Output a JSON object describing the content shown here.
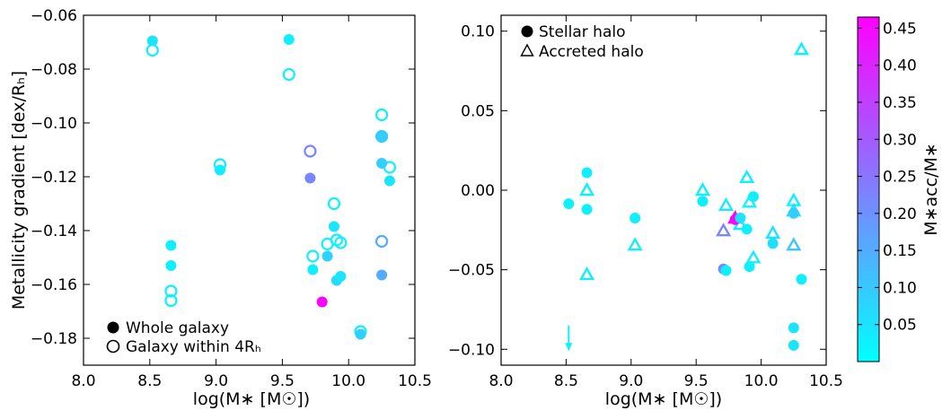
{
  "chart_data": [
    {
      "type": "scatter",
      "panel": "left",
      "xlabel": "log(M∗ [M☉])",
      "ylabel": "Metallicity gradient [dex/Rₕ]",
      "xlim": [
        8.0,
        10.5
      ],
      "ylim": [
        -0.19,
        -0.06
      ],
      "xticks": [
        "8.0",
        "8.5",
        "9.0",
        "9.5",
        "10.0",
        "10.5"
      ],
      "yticks": [
        "−0.06",
        "−0.08",
        "−0.10",
        "−0.12",
        "−0.14",
        "−0.16",
        "−0.18"
      ],
      "xtick_values": [
        8.0,
        8.5,
        9.0,
        9.5,
        10.0,
        10.5
      ],
      "ytick_values": [
        -0.06,
        -0.08,
        -0.1,
        -0.12,
        -0.14,
        -0.16,
        -0.18
      ],
      "legend_position": "bottom-left",
      "legend": [
        {
          "label": "Whole galaxy",
          "marker": "filled-circle"
        },
        {
          "label": "Galaxy within 4Rₕ",
          "marker": "open-circle"
        }
      ],
      "series": [
        {
          "name": "Whole galaxy",
          "marker": "filled-circle",
          "points": [
            {
              "x": 8.52,
              "y": -0.0695,
              "c": 0.05
            },
            {
              "x": 8.66,
              "y": -0.1455,
              "c": 0.03
            },
            {
              "x": 8.66,
              "y": -0.153,
              "c": 0.03
            },
            {
              "x": 9.03,
              "y": -0.1175,
              "c": 0.03
            },
            {
              "x": 9.55,
              "y": -0.069,
              "c": 0.03
            },
            {
              "x": 9.71,
              "y": -0.1205,
              "c": 0.22
            },
            {
              "x": 9.73,
              "y": -0.1545,
              "c": 0.03
            },
            {
              "x": 9.8,
              "y": -0.1665,
              "c": 0.46
            },
            {
              "x": 9.84,
              "y": -0.1495,
              "c": 0.08
            },
            {
              "x": 9.89,
              "y": -0.1385,
              "c": 0.05
            },
            {
              "x": 9.91,
              "y": -0.1585,
              "c": 0.06
            },
            {
              "x": 9.94,
              "y": -0.157,
              "c": 0.05
            },
            {
              "x": 10.09,
              "y": -0.1785,
              "c": 0.09
            },
            {
              "x": 10.25,
              "y": -0.105,
              "c": 0.09
            },
            {
              "x": 10.25,
              "y": -0.115,
              "c": 0.09
            },
            {
              "x": 10.25,
              "y": -0.1565,
              "c": 0.15
            },
            {
              "x": 10.31,
              "y": -0.1215,
              "c": 0.05
            }
          ]
        },
        {
          "name": "Galaxy within 4Rₕ",
          "marker": "open-circle",
          "points": [
            {
              "x": 8.52,
              "y": -0.073,
              "c": 0.03
            },
            {
              "x": 8.66,
              "y": -0.1625,
              "c": 0.03
            },
            {
              "x": 8.66,
              "y": -0.166,
              "c": 0.03
            },
            {
              "x": 9.03,
              "y": -0.1155,
              "c": 0.03
            },
            {
              "x": 9.55,
              "y": -0.082,
              "c": 0.03
            },
            {
              "x": 9.71,
              "y": -0.1105,
              "c": 0.22
            },
            {
              "x": 9.73,
              "y": -0.1495,
              "c": 0.03
            },
            {
              "x": 9.84,
              "y": -0.145,
              "c": 0.03
            },
            {
              "x": 9.89,
              "y": -0.13,
              "c": 0.03
            },
            {
              "x": 9.91,
              "y": -0.1435,
              "c": 0.03
            },
            {
              "x": 9.94,
              "y": -0.1445,
              "c": 0.03
            },
            {
              "x": 10.09,
              "y": -0.1775,
              "c": 0.03
            },
            {
              "x": 10.25,
              "y": -0.097,
              "c": 0.03
            },
            {
              "x": 10.25,
              "y": -0.105,
              "c": 0.09
            },
            {
              "x": 10.25,
              "y": -0.144,
              "c": 0.15
            },
            {
              "x": 10.31,
              "y": -0.1165,
              "c": 0.03
            }
          ]
        }
      ]
    },
    {
      "type": "scatter",
      "panel": "right",
      "xlabel": "log(M∗ [M☉])",
      "ylabel": "",
      "xlim": [
        8.0,
        10.5
      ],
      "ylim": [
        -0.11,
        0.11
      ],
      "xticks": [
        "8.0",
        "8.5",
        "9.0",
        "9.5",
        "10.0",
        "10.5"
      ],
      "yticks": [
        "0.10",
        "0.05",
        "0.00",
        "−0.05",
        "−0.10"
      ],
      "xtick_values": [
        8.0,
        8.5,
        9.0,
        9.5,
        10.0,
        10.5
      ],
      "ytick_values": [
        0.1,
        0.05,
        0.0,
        -0.05,
        -0.1
      ],
      "legend_position": "top-left",
      "legend": [
        {
          "label": "Stellar halo",
          "marker": "filled-circle"
        },
        {
          "label": "Accreted halo",
          "marker": "open-triangle"
        }
      ],
      "series": [
        {
          "name": "Stellar halo",
          "marker": "filled-circle",
          "points": [
            {
              "x": 8.52,
              "y": -0.0085,
              "c": 0.03
            },
            {
              "x": 8.66,
              "y": 0.011,
              "c": 0.03
            },
            {
              "x": 8.66,
              "y": -0.012,
              "c": 0.03
            },
            {
              "x": 9.03,
              "y": -0.0175,
              "c": 0.03
            },
            {
              "x": 9.55,
              "y": -0.007,
              "c": 0.03
            },
            {
              "x": 9.71,
              "y": -0.0495,
              "c": 0.22
            },
            {
              "x": 9.73,
              "y": -0.0505,
              "c": 0.03
            },
            {
              "x": 9.8,
              "y": -0.0185,
              "c": 0.46
            },
            {
              "x": 9.84,
              "y": -0.0175,
              "c": 0.05
            },
            {
              "x": 9.89,
              "y": -0.0245,
              "c": 0.03
            },
            {
              "x": 9.91,
              "y": -0.048,
              "c": 0.03
            },
            {
              "x": 9.94,
              "y": -0.004,
              "c": 0.03
            },
            {
              "x": 10.09,
              "y": -0.0335,
              "c": 0.06
            },
            {
              "x": 10.25,
              "y": -0.0145,
              "c": 0.09
            },
            {
              "x": 10.25,
              "y": -0.0865,
              "c": 0.05
            },
            {
              "x": 10.25,
              "y": -0.0975,
              "c": 0.05
            },
            {
              "x": 10.31,
              "y": -0.056,
              "c": 0.03
            }
          ]
        },
        {
          "name": "Accreted halo",
          "marker": "open-triangle",
          "points": [
            {
              "x": 8.66,
              "y": 0.0,
              "c": 0.03
            },
            {
              "x": 8.66,
              "y": -0.053,
              "c": 0.03
            },
            {
              "x": 9.03,
              "y": -0.0345,
              "c": 0.03
            },
            {
              "x": 9.55,
              "y": 0.0,
              "c": 0.03
            },
            {
              "x": 9.71,
              "y": -0.0255,
              "c": 0.22
            },
            {
              "x": 9.73,
              "y": -0.0095,
              "c": 0.03
            },
            {
              "x": 9.8,
              "y": -0.0175,
              "c": 0.46
            },
            {
              "x": 9.84,
              "y": -0.0215,
              "c": 0.03
            },
            {
              "x": 9.89,
              "y": 0.008,
              "c": 0.03
            },
            {
              "x": 9.91,
              "y": -0.0075,
              "c": 0.03
            },
            {
              "x": 9.94,
              "y": -0.0425,
              "c": 0.03
            },
            {
              "x": 10.09,
              "y": -0.027,
              "c": 0.05
            },
            {
              "x": 10.25,
              "y": -0.0065,
              "c": 0.03
            },
            {
              "x": 10.25,
              "y": -0.013,
              "c": 0.05
            },
            {
              "x": 10.25,
              "y": -0.0345,
              "c": 0.1
            },
            {
              "x": 10.31,
              "y": 0.0885,
              "c": 0.03
            }
          ]
        }
      ],
      "annotations": [
        {
          "type": "down-arrow",
          "x": 8.52,
          "y_from": -0.085,
          "y_to": -0.1
        }
      ]
    }
  ],
  "colorbar": {
    "label": "M∗acc/M∗",
    "range": [
      0.0,
      0.465
    ],
    "ticks": [
      "0.45",
      "0.40",
      "0.35",
      "0.30",
      "0.25",
      "0.20",
      "0.15",
      "0.10",
      "0.05"
    ],
    "tick_values": [
      0.45,
      0.4,
      0.35,
      0.3,
      0.25,
      0.2,
      0.15,
      0.1,
      0.05
    ],
    "colormap": "cool",
    "color_low": "#00ffff",
    "color_high": "#ff00ff"
  }
}
